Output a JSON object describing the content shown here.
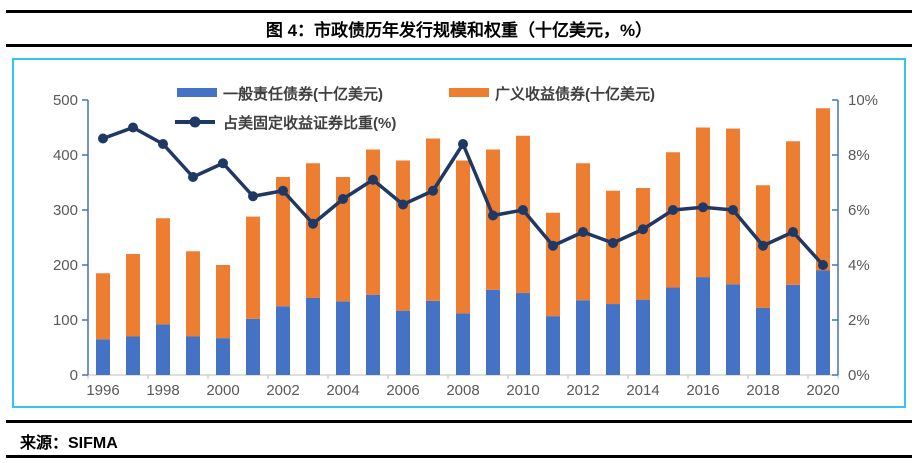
{
  "title": "图 4：市政债历年发行规模和权重（十亿美元，%）",
  "source": "来源：SIFMA",
  "colors": {
    "go_bond": "#4472C4",
    "revenue_bond": "#ED7D31",
    "share_line": "#1F3864",
    "panel_border": "#35C3F0",
    "value_axis": "#4472C4",
    "category_axis": "#C9C9C9",
    "tick_label": "#595959"
  },
  "chart_data": {
    "type": "bar",
    "subtype": "stacked bars with line on secondary axis",
    "title": "图 4：市政债历年发行规模和权重（十亿美元，%）",
    "categories": [
      "1996",
      "1997",
      "1998",
      "1999",
      "2000",
      "2001",
      "2002",
      "2003",
      "2004",
      "2005",
      "2006",
      "2007",
      "2008",
      "2009",
      "2010",
      "2011",
      "2012",
      "2013",
      "2014",
      "2015",
      "2016",
      "2017",
      "2018",
      "2019",
      "2020"
    ],
    "series": [
      {
        "name": "一般责任债券(十亿美元)",
        "type": "bar",
        "stack": true,
        "axis": "left",
        "color": "#4472C4",
        "values": [
          65,
          70,
          92,
          70,
          67,
          102,
          125,
          140,
          134,
          146,
          117,
          135,
          112,
          155,
          149,
          107,
          136,
          129,
          137,
          159,
          178,
          165,
          122,
          164,
          190
        ]
      },
      {
        "name": "广义收益债券(十亿美元)",
        "type": "bar",
        "stack": true,
        "axis": "left",
        "color": "#ED7D31",
        "values": [
          120,
          150,
          193,
          155,
          133,
          186,
          235,
          245,
          226,
          264,
          273,
          295,
          278,
          255,
          286,
          188,
          249,
          206,
          203,
          246,
          272,
          283,
          223,
          261,
          295
        ]
      },
      {
        "name": "占美固定收益证券比重(%)",
        "type": "line",
        "axis": "right",
        "color": "#1F3864",
        "values": [
          8.6,
          9.0,
          8.4,
          7.2,
          7.7,
          6.5,
          6.7,
          5.5,
          6.4,
          7.1,
          6.2,
          6.7,
          8.4,
          5.8,
          6.0,
          4.7,
          5.2,
          4.8,
          5.3,
          6.0,
          6.1,
          6.0,
          4.7,
          5.2,
          4.0
        ]
      }
    ],
    "left_axis": {
      "min": 0,
      "max": 500,
      "step": 100,
      "ticks": [
        "0",
        "100",
        "200",
        "300",
        "400",
        "500"
      ]
    },
    "right_axis": {
      "min": 0,
      "max": 10,
      "step": 2,
      "ticks": [
        "0%",
        "2%",
        "4%",
        "6%",
        "8%",
        "10%"
      ]
    },
    "x_tick_labels": [
      "1996",
      "1998",
      "2000",
      "2002",
      "2004",
      "2006",
      "2008",
      "2010",
      "2012",
      "2014",
      "2016",
      "2018",
      "2020"
    ],
    "grid": false,
    "legend_position": "top-left inside plot"
  }
}
